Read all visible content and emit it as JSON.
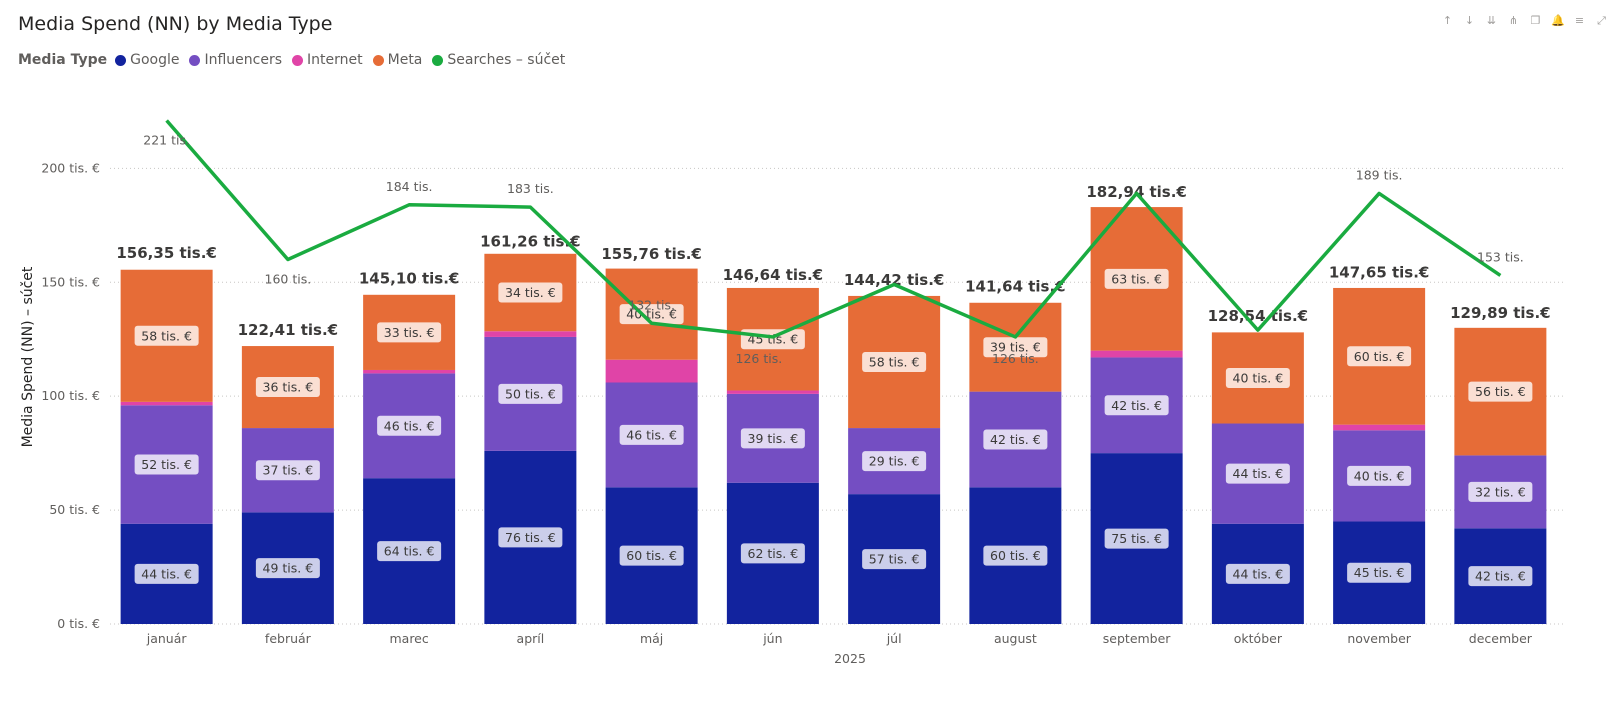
{
  "title": "Media Spend (NN) by Media Type",
  "legend": {
    "title": "Media Type",
    "items": [
      {
        "label": "Google",
        "color": "#12239e"
      },
      {
        "label": "Influencers",
        "color": "#744ec2"
      },
      {
        "label": "Internet",
        "color": "#e044a7"
      },
      {
        "label": "Meta",
        "color": "#e66c37"
      },
      {
        "label": "Searches – súčet",
        "color": "#1aab40"
      }
    ]
  },
  "toolbar": [
    {
      "icon": "arrow-up-icon",
      "glyph": "↑"
    },
    {
      "icon": "arrow-down-icon",
      "glyph": "↓"
    },
    {
      "icon": "double-arrow-down-icon",
      "glyph": "⇊"
    },
    {
      "icon": "expand-hierarchy-icon",
      "glyph": "⋔"
    },
    {
      "icon": "copy-icon",
      "glyph": "❐"
    },
    {
      "icon": "pin-icon",
      "glyph": "🔔"
    },
    {
      "icon": "filter-icon",
      "glyph": "≡"
    },
    {
      "icon": "focus-mode-icon",
      "glyph": "⤢"
    }
  ],
  "chart_data": {
    "type": "bar",
    "stacked": true,
    "categories": [
      "január",
      "február",
      "marec",
      "apríl",
      "máj",
      "jún",
      "júl",
      "august",
      "september",
      "október",
      "november",
      "december"
    ],
    "xlabel": "2025",
    "ylabel": "Media Spend (NN) – súčet",
    "ylim": [
      0,
      230
    ],
    "yticks": [
      {
        "value": 0,
        "label": "0 tis. €"
      },
      {
        "value": 50,
        "label": "50 tis. €"
      },
      {
        "value": 100,
        "label": "100 tis. €"
      },
      {
        "value": 150,
        "label": "150 tis. €"
      },
      {
        "value": 200,
        "label": "200 tis. €"
      }
    ],
    "grid": true,
    "legend_position": "top-left",
    "series": [
      {
        "name": "Google",
        "color": "#12239e",
        "values": [
          44,
          49,
          64,
          76,
          60,
          62,
          57,
          60,
          75,
          44,
          45,
          42
        ],
        "labels": [
          "44 tis. €",
          "49 tis. €",
          "64 tis. €",
          "76 tis. €",
          "60 tis. €",
          "62 tis. €",
          "57 tis. €",
          "60 tis. €",
          "75 tis. €",
          "44 tis. €",
          "45 tis. €",
          "42 tis. €"
        ]
      },
      {
        "name": "Influencers",
        "color": "#744ec2",
        "values": [
          52,
          37,
          46,
          50,
          46,
          39,
          29,
          42,
          42,
          44,
          40,
          32
        ],
        "labels": [
          "52 tis. €",
          "37 tis. €",
          "46 tis. €",
          "50 tis. €",
          "46 tis. €",
          "39 tis. €",
          "29 tis. €",
          "42 tis. €",
          "42 tis. €",
          "44 tis. €",
          "40 tis. €",
          "32 tis. €"
        ]
      },
      {
        "name": "Internet",
        "color": "#e044a7",
        "values": [
          1.5,
          0,
          1.5,
          2.5,
          10,
          1.5,
          0,
          0,
          3,
          0,
          2.5,
          0
        ],
        "labels": [
          "",
          "",
          "",
          "",
          "",
          "",
          "",
          "",
          "",
          "",
          "",
          ""
        ]
      },
      {
        "name": "Meta",
        "color": "#e66c37",
        "values": [
          58,
          36,
          33,
          34,
          40,
          45,
          58,
          39,
          63,
          40,
          60,
          56
        ],
        "labels": [
          "58 tis. €",
          "36 tis. €",
          "33 tis. €",
          "34 tis. €",
          "40 tis. €",
          "45 tis. €",
          "58 tis. €",
          "39 tis. €",
          "63 tis. €",
          "40 tis. €",
          "60 tis. €",
          "56 tis. €"
        ]
      }
    ],
    "totals": [
      156.35,
      122.41,
      145.1,
      161.26,
      155.76,
      146.64,
      144.42,
      141.64,
      182.94,
      128.54,
      147.65,
      129.89
    ],
    "total_labels": [
      "156,35 tis.€",
      "122,41 tis.€",
      "145,10 tis.€",
      "161,26 tis.€",
      "155,76 tis.€",
      "146,64 tis.€",
      "144,42 tis.€",
      "141,64 tis.€",
      "182,94 tis.€",
      "128,54 tis.€",
      "147,65 tis.€",
      "129,89 tis.€"
    ],
    "line_series": {
      "name": "Searches – súčet",
      "color": "#1aab40",
      "values": [
        221,
        160,
        184,
        183,
        132,
        126,
        149,
        126,
        189,
        129,
        189,
        153
      ],
      "labels": [
        "221 tis.",
        "160 tis.",
        "184 tis.",
        "183 tis.",
        "132 tis.",
        "126 tis.",
        "",
        "126 tis.",
        "",
        "",
        "189 tis.",
        "153 tis."
      ]
    }
  }
}
